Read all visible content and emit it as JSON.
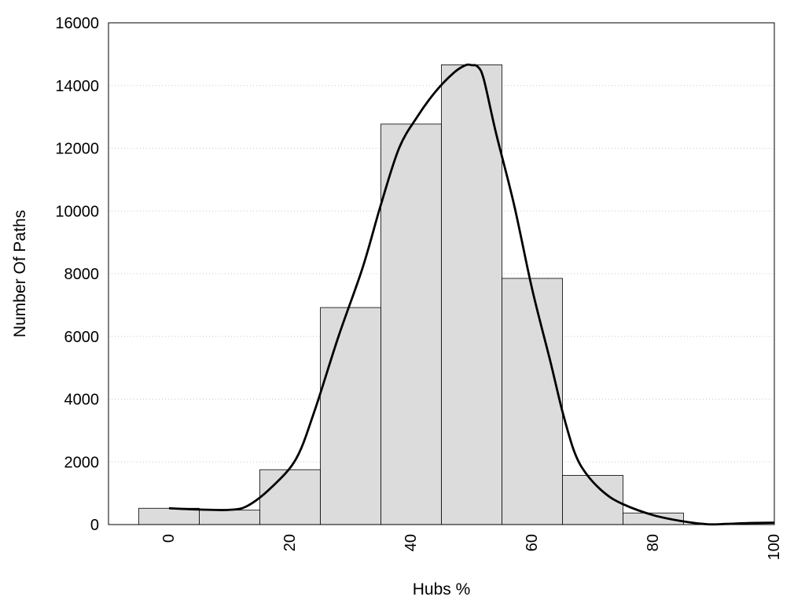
{
  "chart_data": {
    "type": "bar",
    "title": "",
    "xlabel": "Hubs %",
    "ylabel": "Number Of Paths",
    "xlim": [
      -10,
      100
    ],
    "ylim": [
      0,
      16000
    ],
    "x_ticks": [
      "0",
      "20",
      "40",
      "60",
      "80",
      "100"
    ],
    "y_ticks": [
      "0",
      "2000",
      "4000",
      "6000",
      "8000",
      "10000",
      "12000",
      "14000",
      "16000"
    ],
    "grid": "horizontal dotted",
    "bar_width": 10,
    "bar_color": "#dcdcdc",
    "bins": [
      {
        "center": 0,
        "value": 520
      },
      {
        "center": 10,
        "value": 460
      },
      {
        "center": 20,
        "value": 1750
      },
      {
        "center": 30,
        "value": 6920
      },
      {
        "center": 40,
        "value": 12770
      },
      {
        "center": 50,
        "value": 14660
      },
      {
        "center": 60,
        "value": 7850
      },
      {
        "center": 70,
        "value": 1570
      },
      {
        "center": 80,
        "value": 370
      },
      {
        "center": 90,
        "value": 0
      }
    ],
    "density_curve": {
      "color": "#000000",
      "x": [
        0,
        5,
        10,
        13,
        17,
        21,
        24,
        28,
        32,
        35,
        38,
        41,
        44,
        47,
        49,
        50,
        51,
        52,
        54,
        57,
        60,
        63,
        65,
        67,
        69,
        72,
        75,
        80,
        85,
        89,
        92,
        96,
        100
      ],
      "y": [
        520,
        480,
        470,
        600,
        1200,
        2100,
        3600,
        6000,
        8200,
        10200,
        12000,
        13000,
        13800,
        14400,
        14650,
        14650,
        14600,
        14200,
        12500,
        10200,
        7500,
        5200,
        3600,
        2300,
        1600,
        1000,
        650,
        300,
        100,
        10,
        20,
        50,
        60
      ]
    }
  }
}
